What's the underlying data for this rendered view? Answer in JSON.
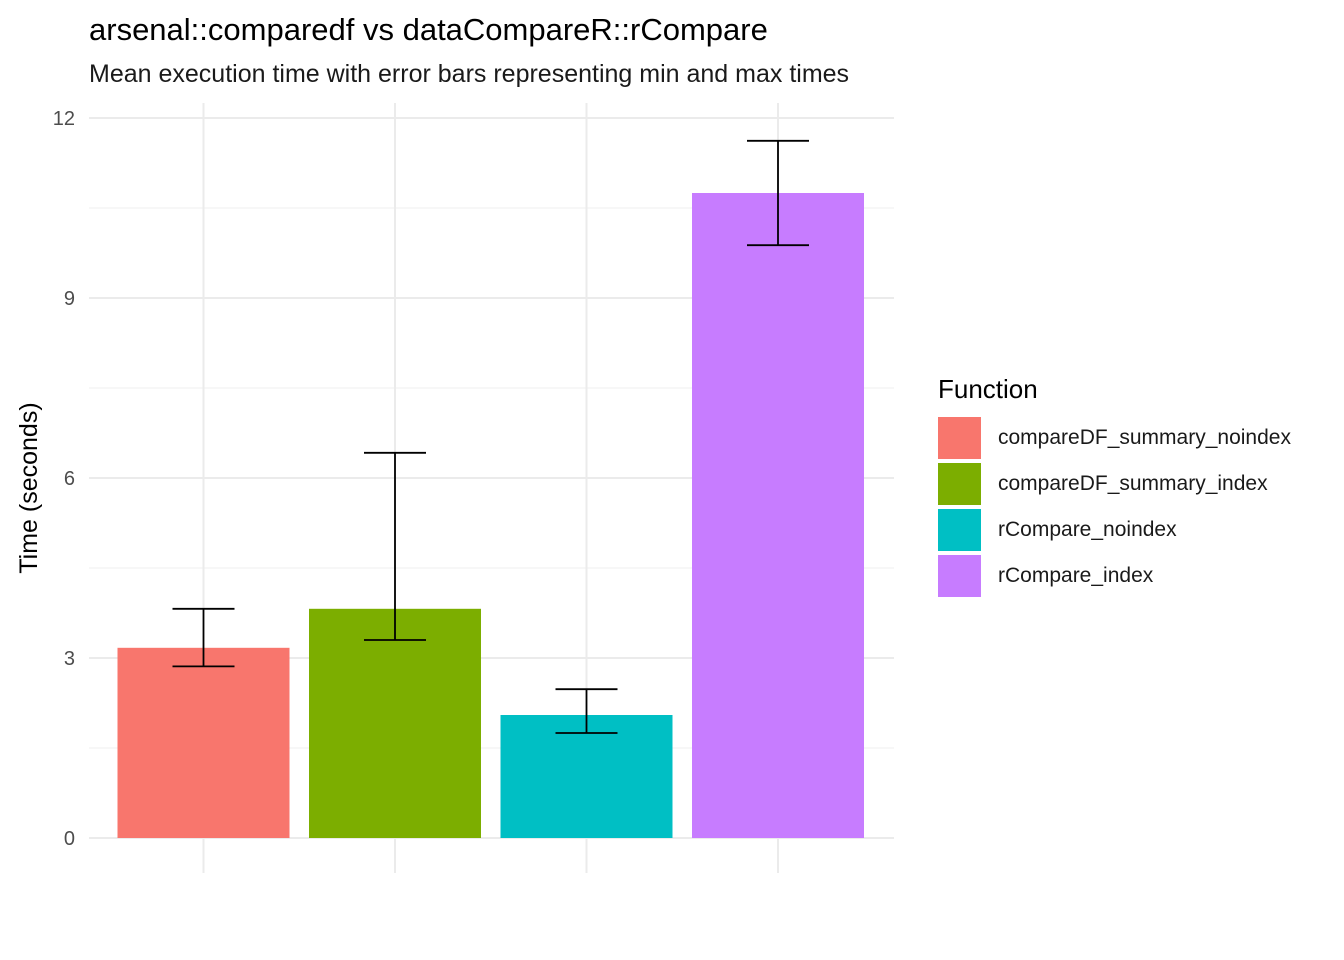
{
  "chart_data": {
    "type": "bar",
    "title": "arsenal::comparedf vs dataCompareR::rCompare",
    "subtitle": "Mean execution time with error bars representing min and max times",
    "xlabel": "",
    "ylabel": "Time (seconds)",
    "ylim": [
      0,
      12
    ],
    "y_ticks": [
      0,
      3,
      6,
      9,
      12
    ],
    "grid": true,
    "legend_title": "Function",
    "legend_position": "right",
    "categories": [
      "compareDF_summary_noindex",
      "compareDF_summary_index",
      "rCompare_noindex",
      "rCompare_index"
    ],
    "values": [
      3.17,
      3.82,
      2.05,
      10.75
    ],
    "error_min": [
      2.86,
      3.3,
      1.75,
      9.88
    ],
    "error_max": [
      3.82,
      6.42,
      2.48,
      11.62
    ],
    "colors": [
      "#F8766D",
      "#7CAE00",
      "#00BFC4",
      "#C77CFF"
    ]
  }
}
